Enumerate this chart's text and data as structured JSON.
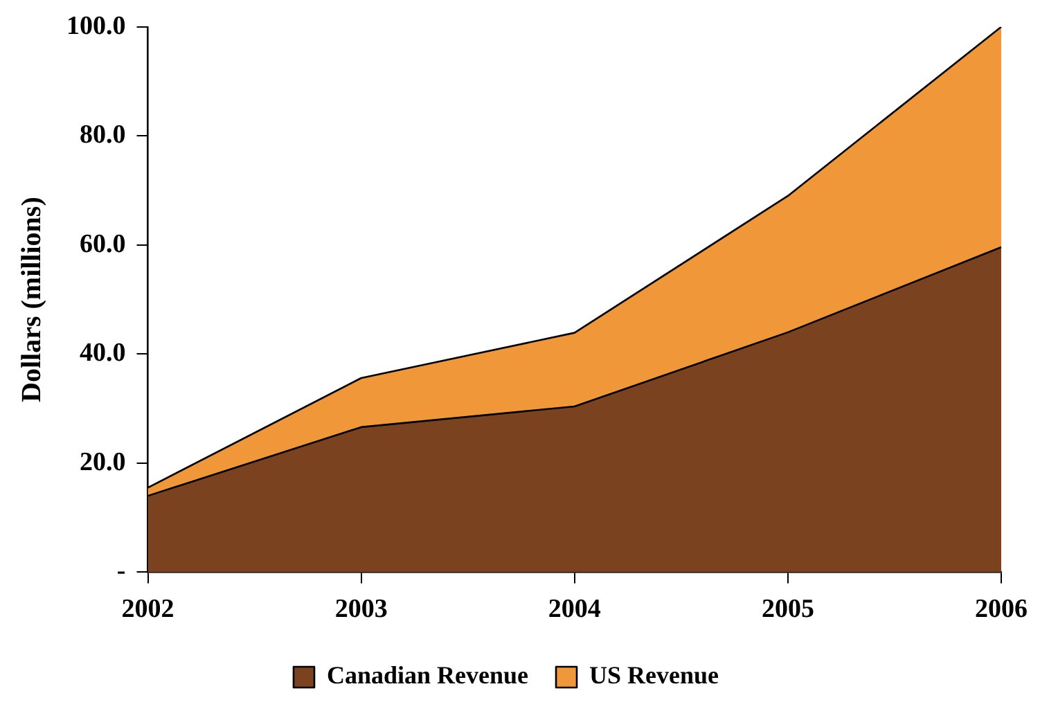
{
  "chart_data": {
    "type": "area",
    "stacked": true,
    "ylabel": "Dollars (millions)",
    "categories": [
      "2002",
      "2003",
      "2004",
      "2005",
      "2006"
    ],
    "series": [
      {
        "name": "Canadian Revenue",
        "color": "#7b4220",
        "values": [
          14,
          26.6,
          30.4,
          44,
          59.6
        ]
      },
      {
        "name": "US Revenue",
        "color": "#f0973a",
        "values": [
          1.5,
          9,
          13.5,
          25,
          40.4
        ]
      }
    ],
    "ylim": [
      0,
      100
    ],
    "yticks": [
      {
        "value": 0,
        "label": "-"
      },
      {
        "value": 20,
        "label": "20.0"
      },
      {
        "value": 40,
        "label": "40.0"
      },
      {
        "value": 60,
        "label": "60.0"
      },
      {
        "value": 80,
        "label": "80.0"
      },
      {
        "value": 100,
        "label": "100.0"
      }
    ],
    "grid": false,
    "legend": "bottom"
  }
}
